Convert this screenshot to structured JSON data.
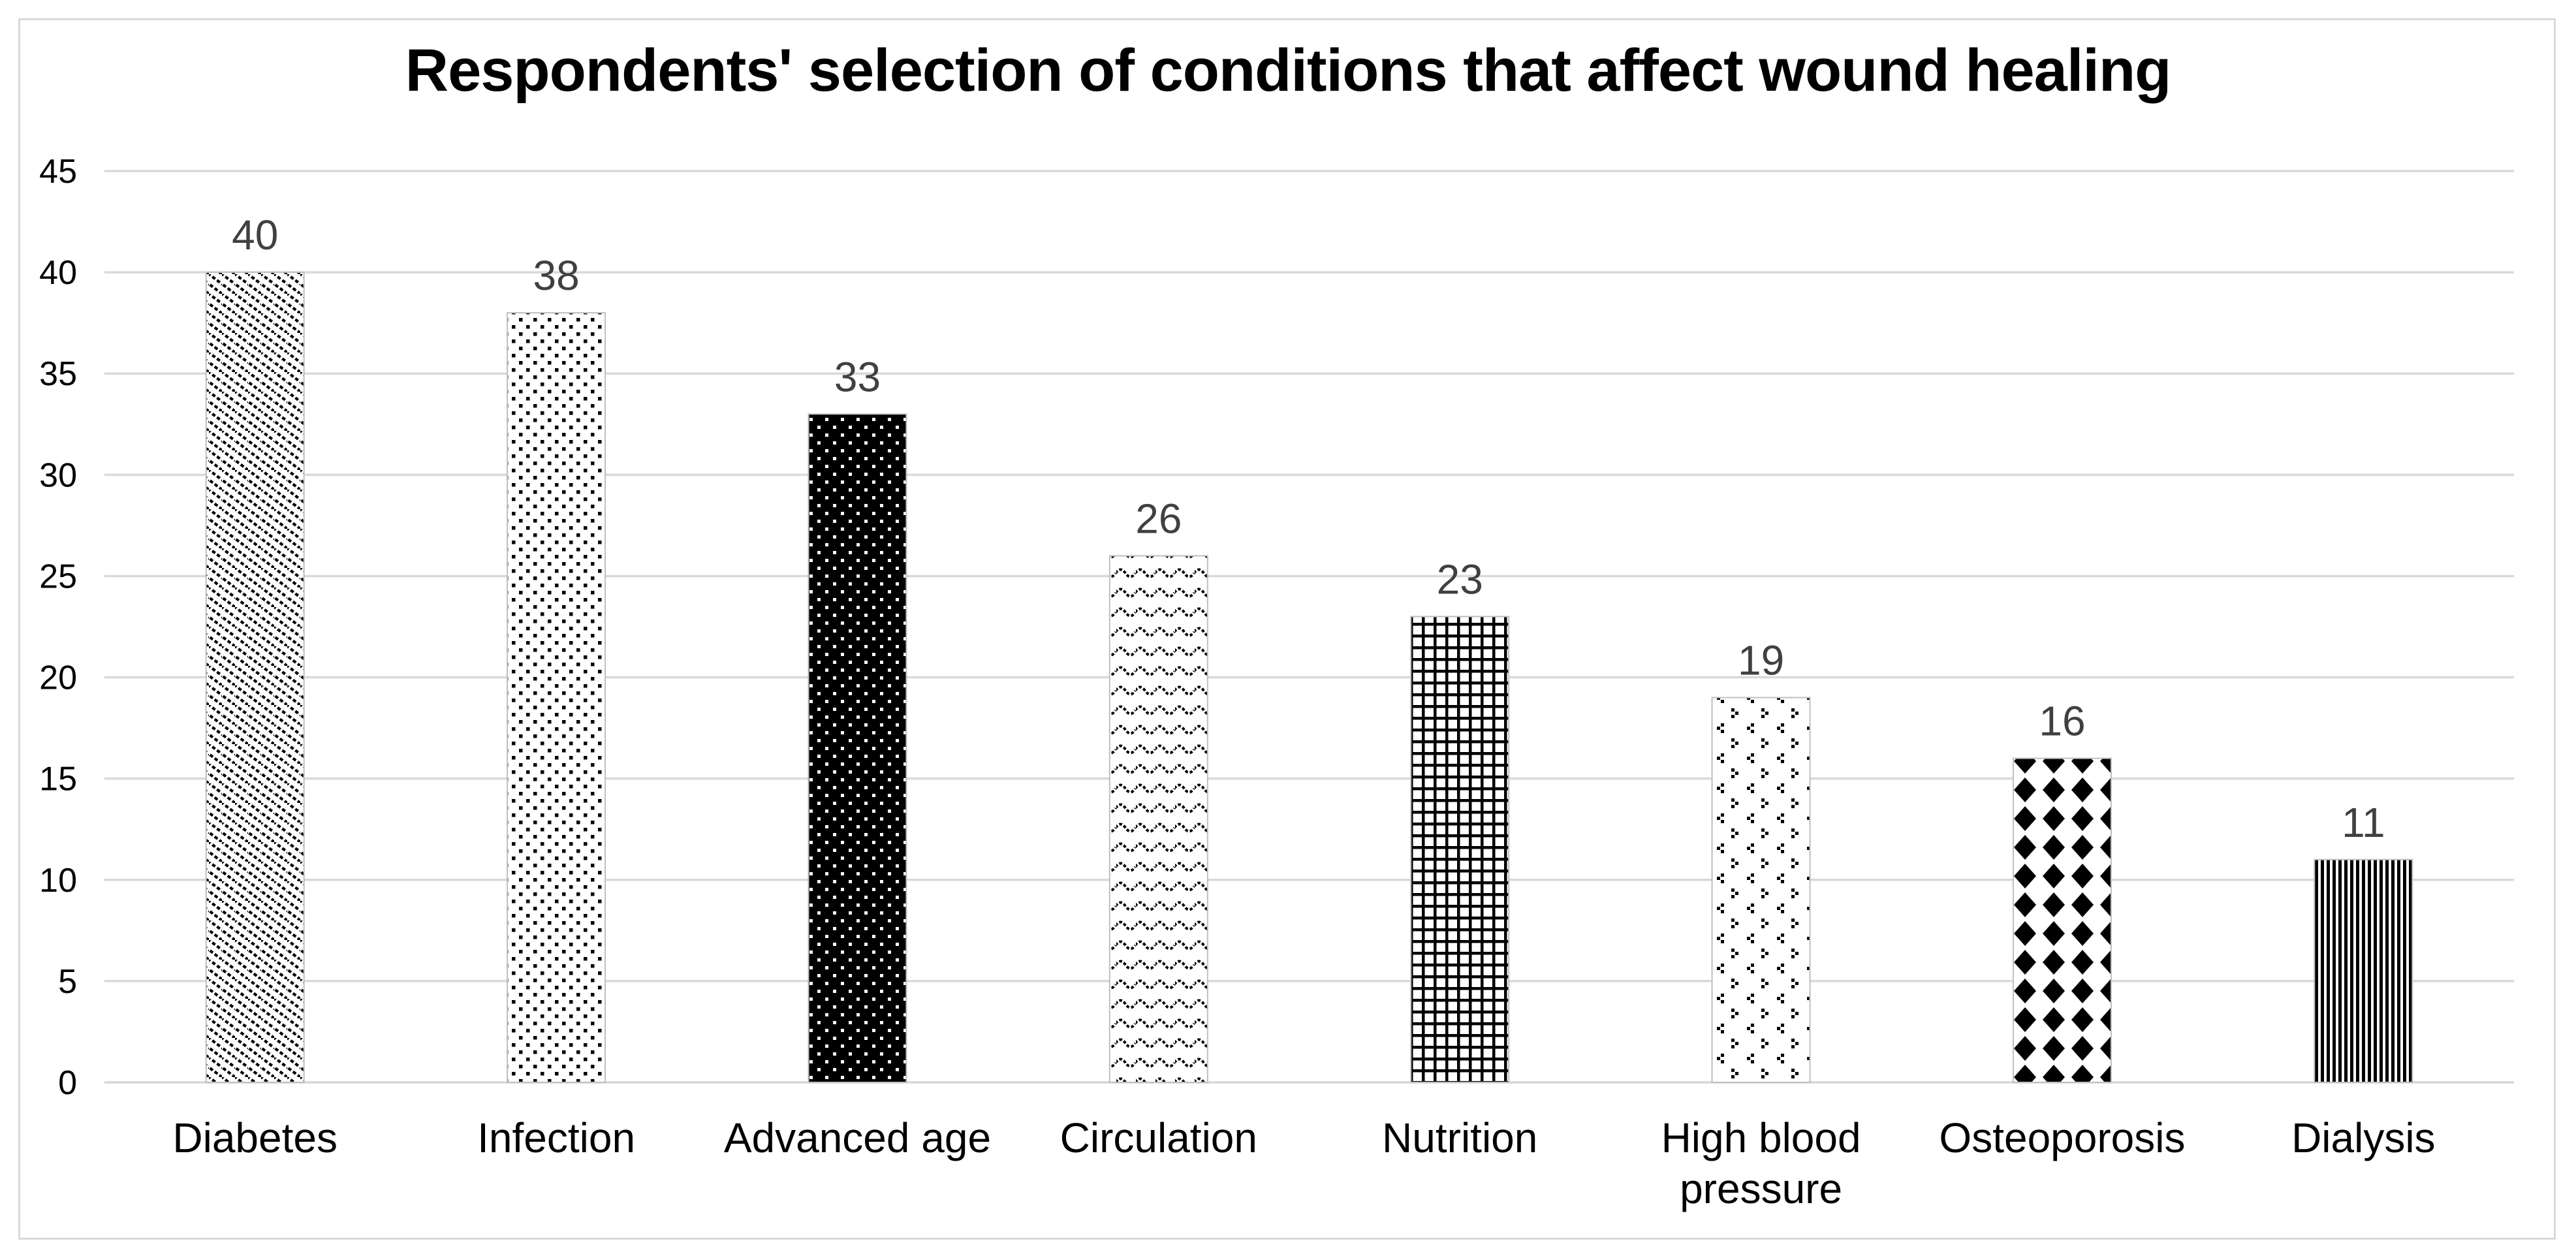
{
  "chart_data": {
    "type": "bar",
    "title": "Respondents' selection of conditions that affect wound healing",
    "categories": [
      "Diabetes",
      "Infection",
      "Advanced age",
      "Circulation",
      "Nutrition",
      "High blood pressure",
      "Osteoporosis",
      "Dialysis"
    ],
    "category_label_lines": [
      [
        "Diabetes"
      ],
      [
        "Infection"
      ],
      [
        "Advanced age"
      ],
      [
        "Circulation"
      ],
      [
        "Nutrition"
      ],
      [
        "High blood",
        "pressure"
      ],
      [
        "Osteoporosis"
      ],
      [
        "Dialysis"
      ]
    ],
    "values": [
      40,
      38,
      33,
      26,
      23,
      19,
      16,
      11
    ],
    "data_labels": [
      "40",
      "38",
      "33",
      "26",
      "23",
      "19",
      "16",
      "11"
    ],
    "bar_patterns": [
      "diagonal-dashes",
      "dots",
      "inverse-dots",
      "waves",
      "grid",
      "chevron-dots",
      "diamonds",
      "vertical-stripes"
    ],
    "yticks": [
      0,
      5,
      10,
      15,
      20,
      25,
      30,
      35,
      40,
      45
    ],
    "ylim": [
      0,
      45
    ],
    "xlabel": "",
    "ylabel": "",
    "grid": true,
    "legend": "none",
    "colors": {
      "background": "#ffffff",
      "chart_border": "#d9d9d9",
      "gridline": "#d9d9d9",
      "axis_line": "#d7d7d7",
      "tick_label": "#000000",
      "category_label": "#000000",
      "data_label": "#404040",
      "bar_border": "#bfbfbf",
      "pattern_ink": "#000000"
    }
  }
}
